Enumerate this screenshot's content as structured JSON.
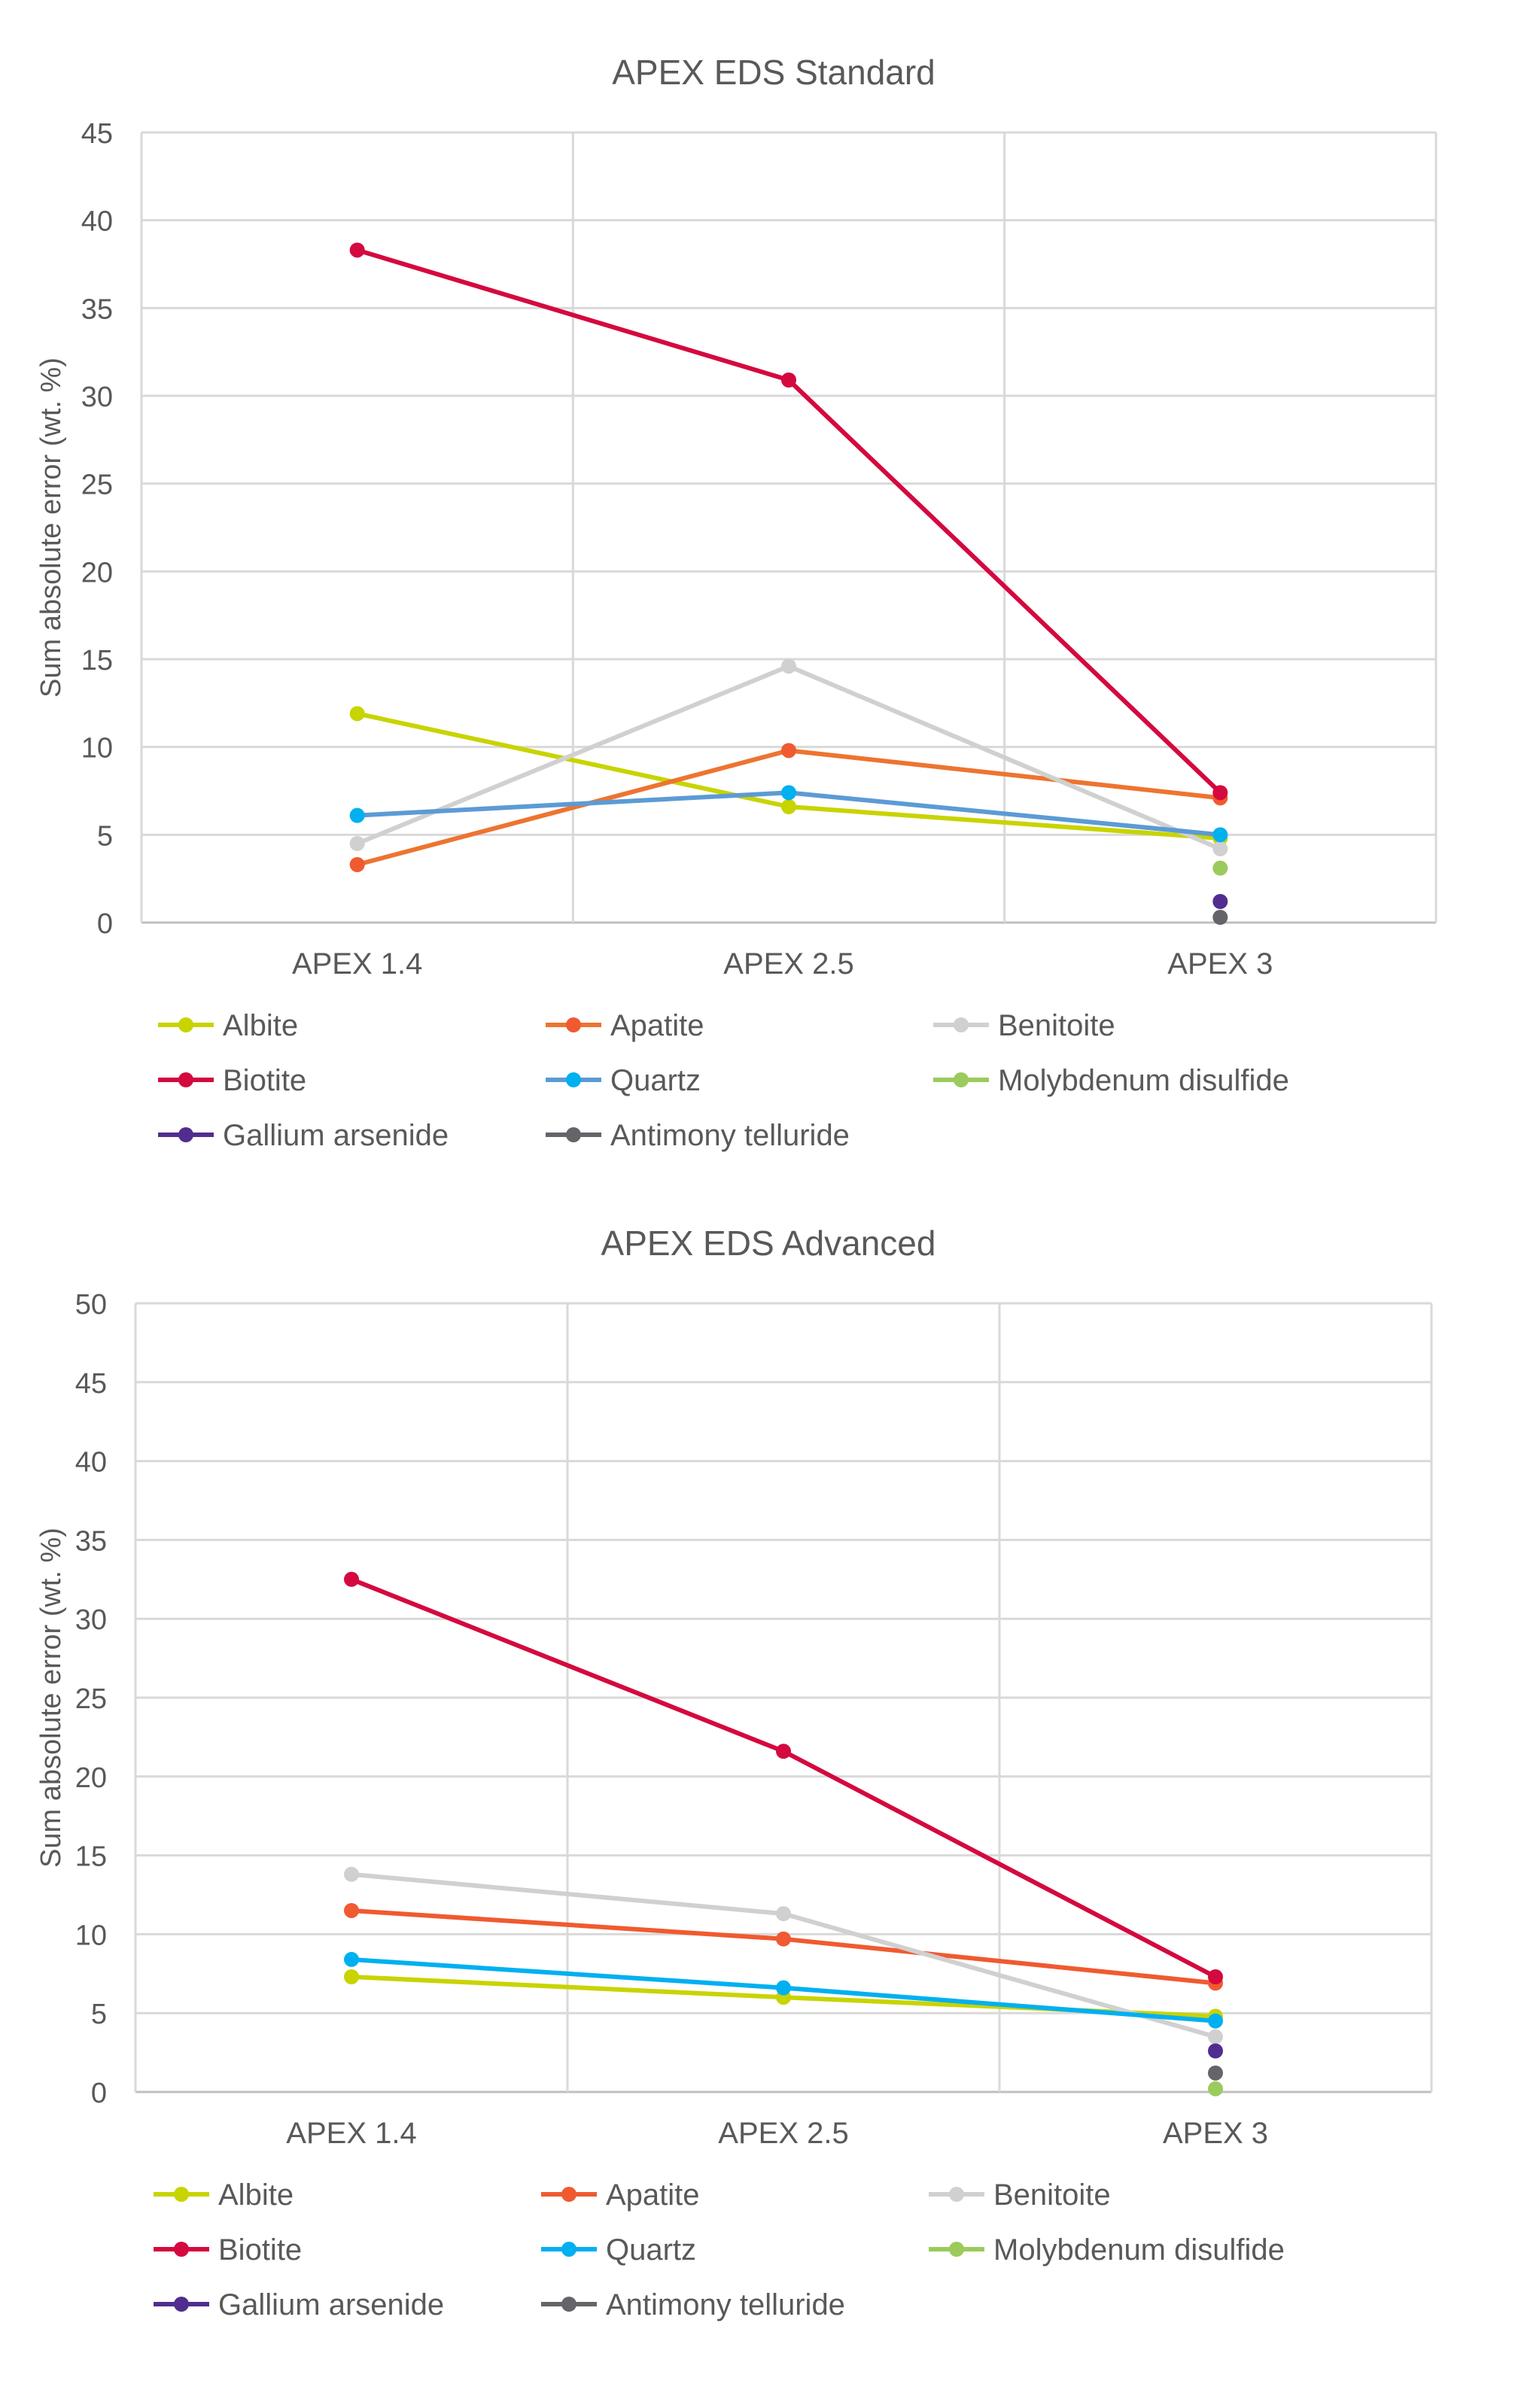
{
  "chart_data": [
    {
      "type": "line",
      "title": "APEX EDS Standard",
      "ylabel": "Sum absolute error (wt. %)",
      "xlabel": "",
      "categories": [
        "APEX 1.4",
        "APEX 2.5",
        "APEX 3"
      ],
      "ylim": [
        0,
        45
      ],
      "yticks": [
        0,
        5,
        10,
        15,
        20,
        25,
        30,
        35,
        40,
        45
      ],
      "grid": true,
      "legend": "bottom",
      "series": [
        {
          "name": "Albite",
          "values": [
            11.9,
            6.6,
            4.8
          ],
          "color": "#c8d400",
          "marker": "#c8d400"
        },
        {
          "name": "Apatite",
          "values": [
            3.3,
            9.8,
            7.1
          ],
          "color": "#ed7430",
          "marker": "#f05a30"
        },
        {
          "name": "Benitoite",
          "values": [
            4.5,
            14.6,
            4.2
          ],
          "color": "#d0d0d0",
          "marker": "#d0d0d0"
        },
        {
          "name": "Biotite",
          "values": [
            38.3,
            30.9,
            7.4
          ],
          "color": "#d4093f",
          "marker": "#d4093f"
        },
        {
          "name": "Quartz",
          "values": [
            6.1,
            7.4,
            5.0
          ],
          "color": "#5b9bd5",
          "marker": "#00b0f0"
        },
        {
          "name": "Molybdenum disulfide",
          "values": [
            null,
            null,
            3.1
          ],
          "color": "#9acb5c",
          "marker": "#9acb5c"
        },
        {
          "name": "Gallium arsenide",
          "values": [
            null,
            null,
            1.2
          ],
          "color": "#512d8f",
          "marker": "#512d8f"
        },
        {
          "name": "Antimony telluride",
          "values": [
            null,
            null,
            0.3
          ],
          "color": "#646469",
          "marker": "#646469"
        }
      ]
    },
    {
      "type": "line",
      "title": "APEX EDS Advanced",
      "ylabel": "Sum absolute error (wt. %)",
      "xlabel": "",
      "categories": [
        "APEX 1.4",
        "APEX 2.5",
        "APEX 3"
      ],
      "ylim": [
        0,
        50
      ],
      "yticks": [
        0,
        5,
        10,
        15,
        20,
        25,
        30,
        35,
        40,
        45,
        50
      ],
      "grid": true,
      "legend": "bottom",
      "series": [
        {
          "name": "Albite",
          "values": [
            7.3,
            6.0,
            4.8
          ],
          "color": "#c8d400",
          "marker": "#c8d400"
        },
        {
          "name": "Apatite",
          "values": [
            11.5,
            9.7,
            6.9
          ],
          "color": "#f05a30",
          "marker": "#f05a30"
        },
        {
          "name": "Benitoite",
          "values": [
            13.8,
            11.3,
            3.5
          ],
          "color": "#d0d0d0",
          "marker": "#d0d0d0"
        },
        {
          "name": "Biotite",
          "values": [
            32.5,
            21.6,
            7.3
          ],
          "color": "#d4093f",
          "marker": "#d4093f"
        },
        {
          "name": "Quartz",
          "values": [
            8.4,
            6.6,
            4.5
          ],
          "color": "#00b0f0",
          "marker": "#00b0f0"
        },
        {
          "name": "Molybdenum disulfide",
          "values": [
            null,
            null,
            0.2
          ],
          "color": "#9acb5c",
          "marker": "#9acb5c"
        },
        {
          "name": "Gallium arsenide",
          "values": [
            null,
            null,
            2.6
          ],
          "color": "#512d8f",
          "marker": "#512d8f"
        },
        {
          "name": "Antimony telluride",
          "values": [
            null,
            null,
            1.2
          ],
          "color": "#646469",
          "marker": "#646469"
        }
      ]
    }
  ]
}
